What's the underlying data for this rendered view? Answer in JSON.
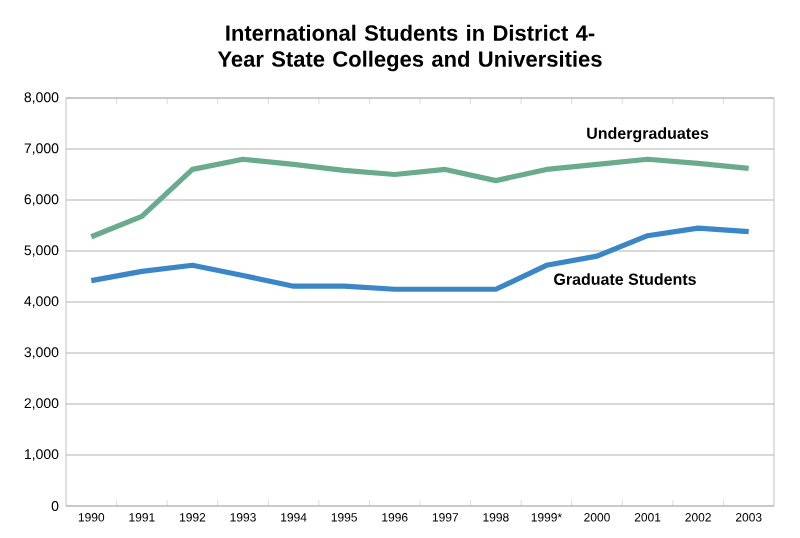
{
  "chart_data": {
    "type": "line",
    "title": "International Students in District 4-Year State Colleges and Universities",
    "categories": [
      "1990",
      "1991",
      "1992",
      "1993",
      "1994",
      "1995",
      "1996",
      "1997",
      "1998",
      "1999*",
      "2000",
      "2001",
      "2002",
      "2003"
    ],
    "series": [
      {
        "name": "Undergraduates",
        "color": "#6aab8e",
        "values": [
          5280,
          5680,
          6600,
          6800,
          6700,
          6580,
          6500,
          6600,
          6380,
          6600,
          6700,
          6800,
          6720,
          6620
        ]
      },
      {
        "name": "Graduate Students",
        "color": "#3b86c6",
        "values": [
          4420,
          4600,
          4720,
          4520,
          4310,
          4310,
          4250,
          4250,
          4250,
          4720,
          4900,
          5300,
          5450,
          5380
        ]
      }
    ],
    "ylim": [
      0,
      8000
    ],
    "yticks": [
      {
        "value": 0,
        "label": "0"
      },
      {
        "value": 1000,
        "label": "1,000"
      },
      {
        "value": 2000,
        "label": "2,000"
      },
      {
        "value": 3000,
        "label": "3,000"
      },
      {
        "value": 4000,
        "label": "4,000"
      },
      {
        "value": 5000,
        "label": "5,000"
      },
      {
        "value": 6000,
        "label": "6,000"
      },
      {
        "value": 7000,
        "label": "7,000"
      },
      {
        "value": 8000,
        "label": "8,000"
      }
    ],
    "grid": "y",
    "legend": false,
    "marker": "none",
    "line_style": "solid"
  }
}
